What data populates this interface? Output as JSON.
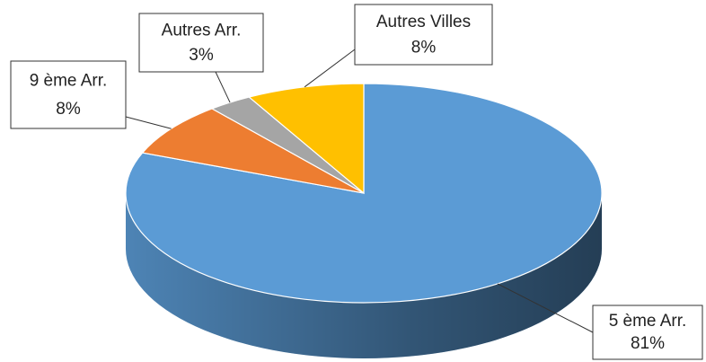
{
  "chart_data": {
    "type": "pie",
    "categories": [
      "5 ème Arr.",
      "9 ème Arr.",
      "Autres Arr.",
      "Autres Villes"
    ],
    "values": [
      81,
      8,
      3,
      8
    ],
    "value_labels": [
      "81%",
      "8%",
      "3%",
      "8%"
    ],
    "colors": [
      "#5b9bd5",
      "#ed7d31",
      "#a5a5a5",
      "#ffc000"
    ]
  }
}
